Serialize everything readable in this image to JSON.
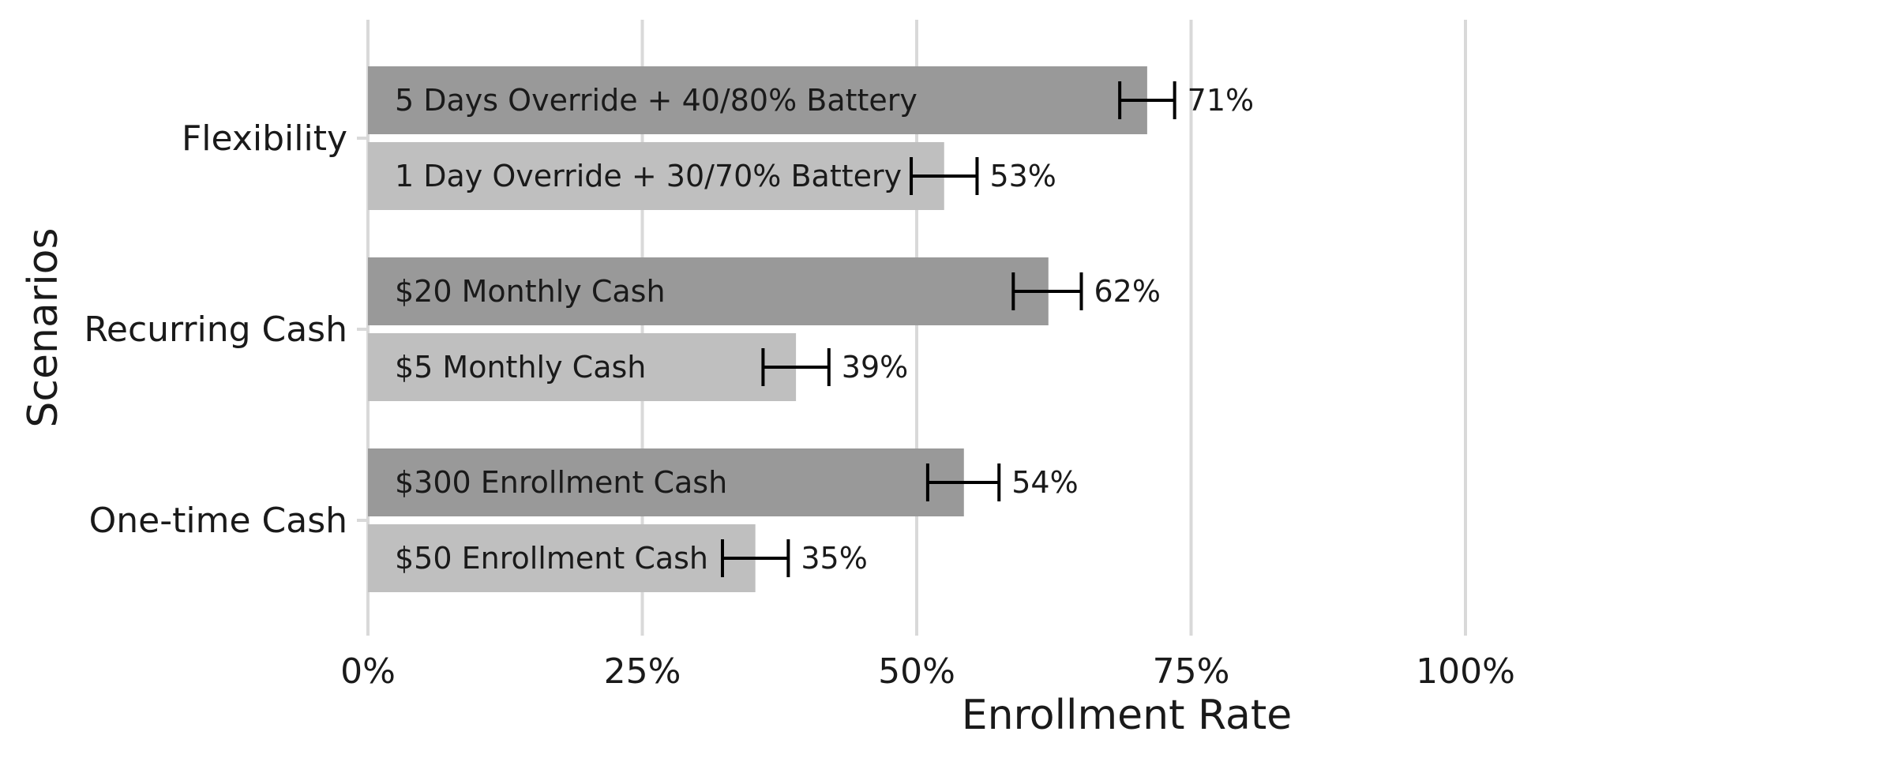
{
  "chart_data": {
    "type": "bar",
    "orientation": "horizontal",
    "xlabel": "Enrollment Rate",
    "ylabel": "Scenarios",
    "xlim": [
      0,
      1.2
    ],
    "xticks": [
      0,
      0.25,
      0.5,
      0.75,
      1.0
    ],
    "xtick_labels": [
      "0%",
      "25%",
      "50%",
      "75%",
      "100%"
    ],
    "grid": "vertical",
    "legend": "none",
    "colors": {
      "high": "#999999",
      "low": "#bfbfbf",
      "grid": "#d9d9d9",
      "error": "#000000"
    },
    "groups": [
      {
        "name": "Flexibility",
        "bars": [
          {
            "label": "5 Days Override + 40/80% Battery",
            "value": 0.71,
            "value_label": "71%",
            "err_low": 0.685,
            "err_high": 0.735,
            "level": "high"
          },
          {
            "label": "1 Day Override + 30/70% Battery",
            "value": 0.525,
            "value_label": "53%",
            "err_low": 0.495,
            "err_high": 0.555,
            "level": "low"
          }
        ]
      },
      {
        "name": "Recurring Cash",
        "bars": [
          {
            "label": "$20 Monthly Cash",
            "value": 0.62,
            "value_label": "62%",
            "err_low": 0.588,
            "err_high": 0.65,
            "level": "high"
          },
          {
            "label": "$5 Monthly Cash",
            "value": 0.39,
            "value_label": "39%",
            "err_low": 0.36,
            "err_high": 0.42,
            "level": "low"
          }
        ]
      },
      {
        "name": "One-time Cash",
        "bars": [
          {
            "label": "$300 Enrollment Cash",
            "value": 0.543,
            "value_label": "54%",
            "err_low": 0.51,
            "err_high": 0.575,
            "level": "high"
          },
          {
            "label": "$50 Enrollment Cash",
            "value": 0.353,
            "value_label": "35%",
            "err_low": 0.323,
            "err_high": 0.383,
            "level": "low"
          }
        ]
      }
    ]
  }
}
